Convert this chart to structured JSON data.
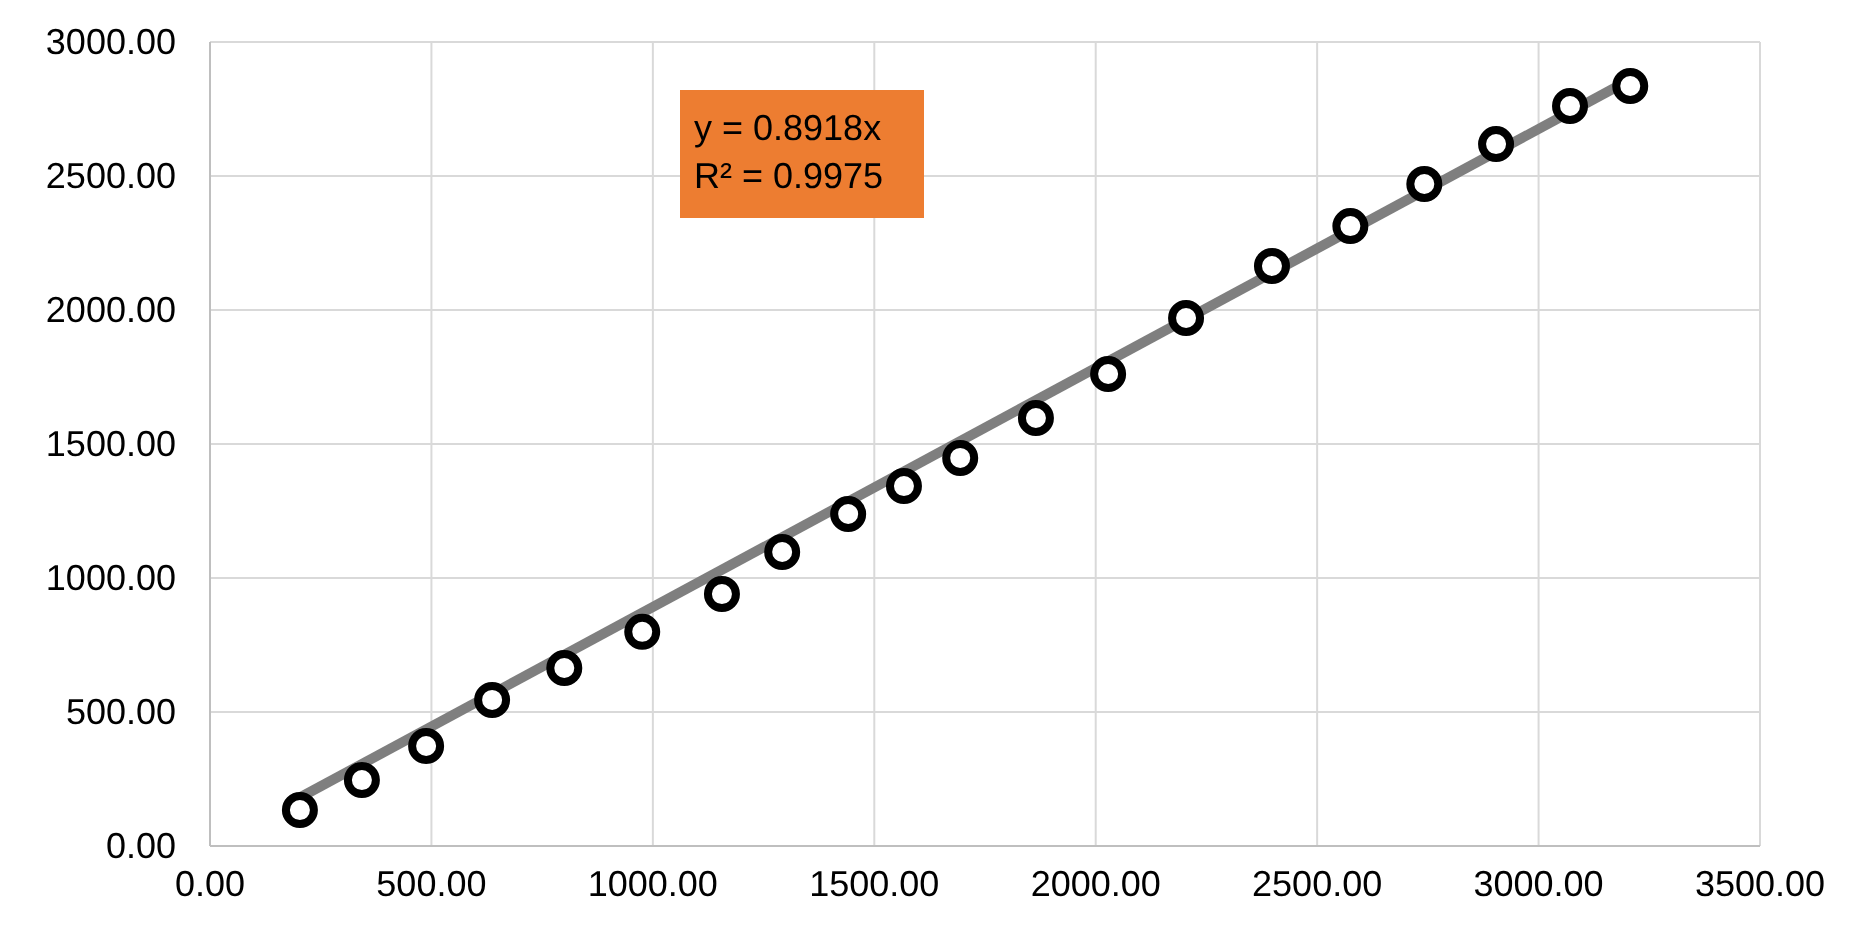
{
  "chart_data": {
    "type": "scatter",
    "x": [
      203,
      343,
      488,
      637,
      800,
      976,
      1156,
      1292,
      1441,
      1567,
      1694,
      1865,
      2028,
      2204,
      2398,
      2575,
      2742,
      2904,
      3071,
      3207
    ],
    "series": [
      {
        "color": "#000000",
        "marker": "circle",
        "values": [
          134,
          246,
          373,
          545,
          664,
          799,
          940,
          1097,
          1239,
          1343,
          1448,
          1597,
          1761,
          1970,
          2164,
          2313,
          2470,
          2619,
          2761,
          2836
        ]
      },
      {
        "type": "line",
        "color": "#7f7f7f",
        "marker": "none",
        "x": [
          203,
          3207
        ],
        "values": [
          181,
          2860
        ]
      }
    ],
    "xlim": [
      0,
      3500
    ],
    "ylim": [
      0,
      3000
    ],
    "xticks": [
      {
        "value": 0,
        "label": "0.00"
      },
      {
        "value": 500,
        "label": "500.00"
      },
      {
        "value": 1000,
        "label": "1000.00"
      },
      {
        "value": 1500,
        "label": "1500.00"
      },
      {
        "value": 2000,
        "label": "2000.00"
      },
      {
        "value": 2500,
        "label": "2500.00"
      },
      {
        "value": 3000,
        "label": "3000.00"
      },
      {
        "value": 3500,
        "label": "3500.00"
      }
    ],
    "yticks": [
      {
        "value": 0,
        "label": "0.00"
      },
      {
        "value": 500,
        "label": "500.00"
      },
      {
        "value": 1000,
        "label": "1000.00"
      },
      {
        "value": 1500,
        "label": "1500.00"
      },
      {
        "value": 2000,
        "label": "2000.00"
      },
      {
        "value": 2500,
        "label": "2500.00"
      },
      {
        "value": 3000,
        "label": "3000.00"
      }
    ],
    "grid": true,
    "annotations": [
      "y = 0.8918x",
      "R² = 0.9975"
    ]
  }
}
